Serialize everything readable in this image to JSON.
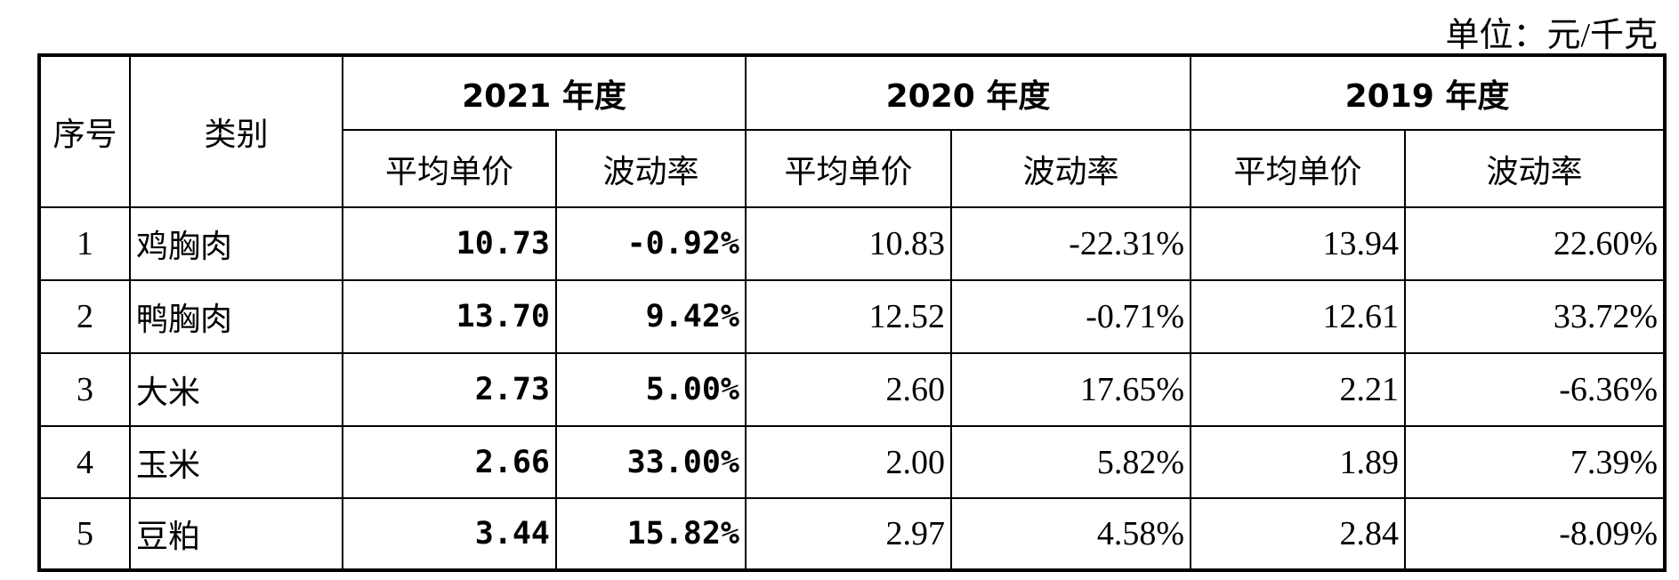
{
  "unit": "单位：元/千克",
  "table": {
    "header": {
      "index": "序号",
      "category": "类别",
      "years": [
        "2021 年度",
        "2020 年度",
        "2019 年度"
      ],
      "subheaders": [
        "平均单价",
        "波动率",
        "平均单价",
        "波动率",
        "平均单价",
        "波动率"
      ]
    },
    "rows": [
      [
        "1",
        "鸡胸肉",
        "10.73",
        "-0.92%",
        "10.83",
        "-22.31%",
        "13.94",
        "22.60%"
      ],
      [
        "2",
        "鸭胸肉",
        "13.70",
        "9.42%",
        "12.52",
        "-0.71%",
        "12.61",
        "33.72%"
      ],
      [
        "3",
        "大米",
        "2.73",
        "5.00%",
        "2.60",
        "17.65%",
        "2.21",
        "-6.36%"
      ],
      [
        "4",
        "玉米",
        "2.66",
        "33.00%",
        "2.00",
        "5.82%",
        "1.89",
        "7.39%"
      ],
      [
        "5",
        "豆粕",
        "3.44",
        "15.82%",
        "2.97",
        "4.58%",
        "2.84",
        "-8.09%"
      ]
    ]
  }
}
